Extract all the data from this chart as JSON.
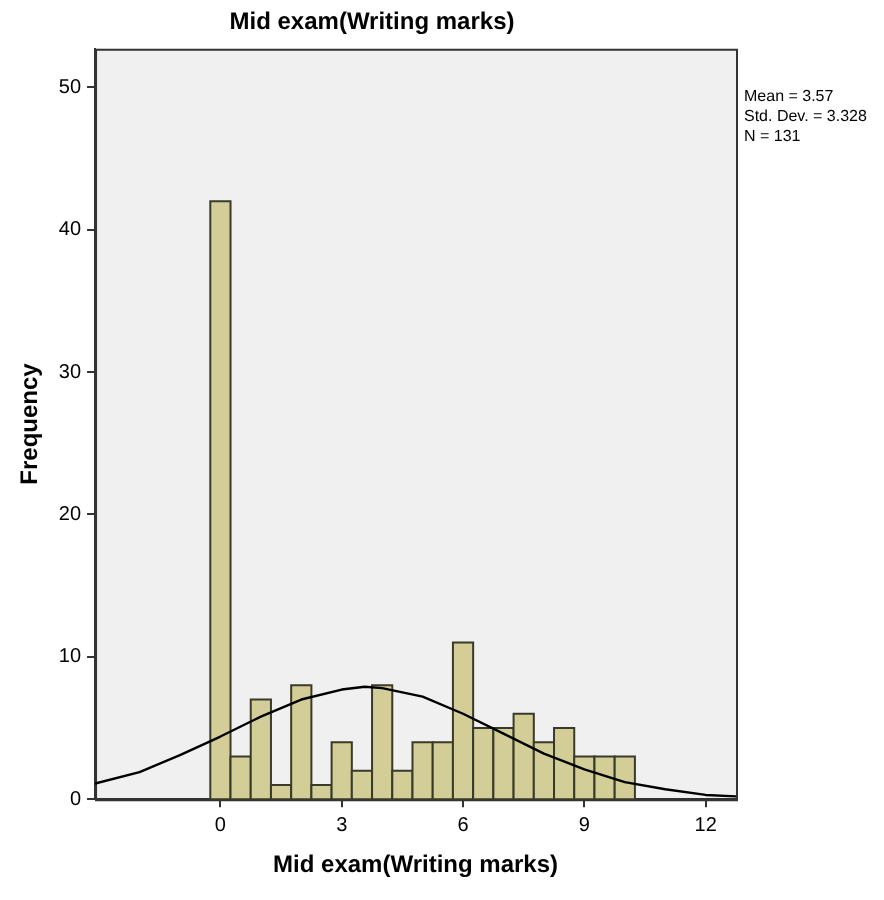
{
  "chart_data": {
    "type": "histogram",
    "title": "Mid exam(Writing marks)",
    "xlabel": "Mid exam(Writing marks)",
    "ylabel": "Frequency",
    "bins": [
      -0.25,
      0.25,
      0.75,
      1.25,
      1.75,
      2.25,
      2.75,
      3.25,
      3.75,
      4.25,
      4.75,
      5.25,
      5.75,
      6.25,
      6.75,
      7.25,
      7.75,
      8.25,
      8.75,
      9.25,
      9.75,
      10.25
    ],
    "values": [
      42,
      3,
      7,
      1,
      8,
      1,
      4,
      2,
      8,
      2,
      4,
      4,
      11,
      5,
      5,
      6,
      4,
      5,
      3,
      3,
      3
    ],
    "color": "#d3ce97",
    "series": [
      {
        "type": "line",
        "color": "#000000",
        "x": [
          -3.1,
          -2,
          -1,
          0,
          1,
          2,
          3,
          3.57,
          4,
          5,
          6,
          7,
          8,
          9,
          10,
          11,
          12,
          12.75
        ],
        "values": [
          1.1,
          1.9,
          3.1,
          4.4,
          5.8,
          7,
          7.7,
          7.9,
          7.8,
          7.2,
          6,
          4.6,
          3.2,
          2.1,
          1.2,
          0.7,
          0.3,
          0.2
        ]
      }
    ],
    "marker": "none",
    "xlim": [
      -3.1,
      12.75
    ],
    "xticks": [
      0,
      3,
      6,
      9,
      12
    ],
    "ylim": [
      0,
      52.7
    ],
    "yticks": [
      0,
      10,
      20,
      30,
      40,
      50
    ],
    "grid": false,
    "legend": false,
    "annotations": [
      "Mean = 3.57",
      "Std. Dev. = 3.328",
      "N = 131"
    ]
  }
}
